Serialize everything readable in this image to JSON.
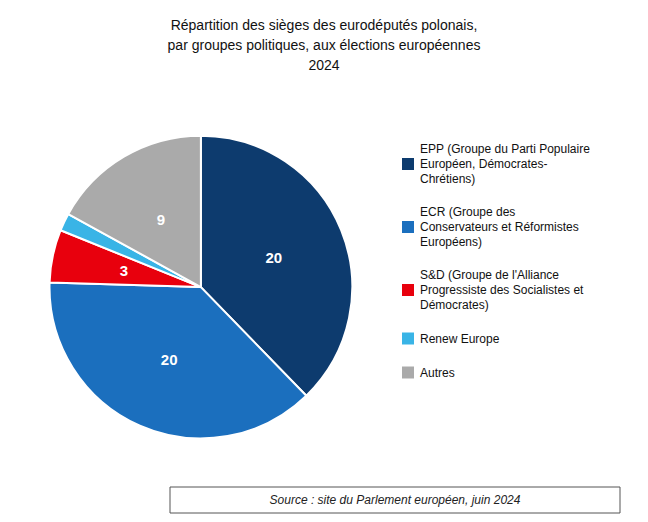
{
  "chart_data": {
    "type": "pie",
    "title": "Répartition des sièges des eurodéputés polonais,\npar groupes politiques, aux élections européennes\n2024",
    "categories": [
      "EPP (Groupe du Parti Populaire\nEuropéen, Démocrates-\nChrétiens)",
      "ECR (Groupe des\nConservateurs et Réformistes\nEuropéens)",
      "S&D (Groupe de l'Alliance\nProgressiste des Socialistes et\nDémocrates)",
      "Renew Europe",
      "Autres"
    ],
    "values": [
      20,
      20,
      3,
      1,
      9
    ],
    "value_labels": [
      "20",
      "20",
      "3",
      null,
      "9"
    ],
    "data_labels": true,
    "colors": [
      "#0d3b6e",
      "#1b6fbe",
      "#e8000d",
      "#39b4e6",
      "#aaaaaa"
    ],
    "legend": "right",
    "annotations": [
      "Source : site du Parlement européen, juin 2024"
    ]
  }
}
